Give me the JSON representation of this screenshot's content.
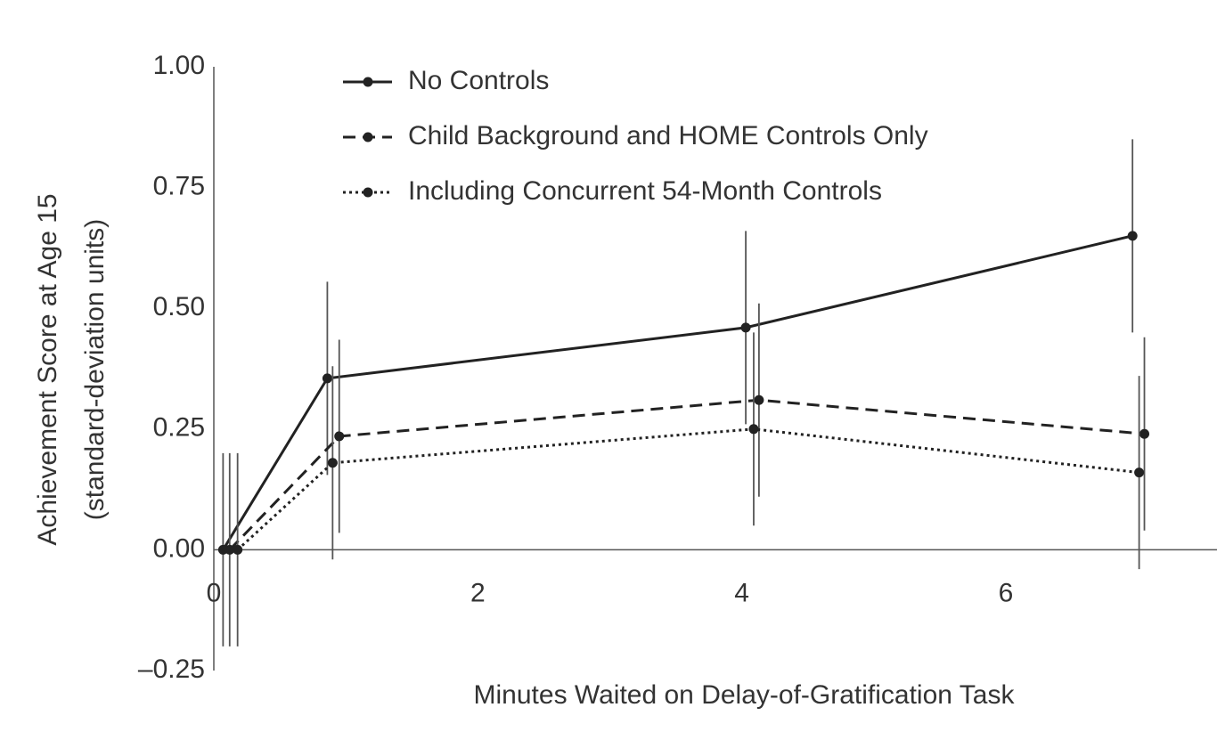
{
  "chart_data": {
    "type": "line",
    "x_label": "Minutes Waited on Delay-of-Gratification Task",
    "y_label": [
      "Achievement Score at Age 15",
      "(standard-deviation units)"
    ],
    "xlim": [
      0,
      7.6
    ],
    "xticks": [
      0,
      2,
      4,
      6
    ],
    "ylim": [
      -0.25,
      1.0
    ],
    "yticks": [
      {
        "value": -0.25,
        "label": "–0.25"
      },
      {
        "value": 0,
        "label": "0.00"
      },
      {
        "value": 0.25,
        "label": "0.25"
      },
      {
        "value": 0.5,
        "label": "0.50"
      },
      {
        "value": 0.75,
        "label": "0.75"
      },
      {
        "value": 1,
        "label": "1.00"
      }
    ],
    "legend": "top-left",
    "series": [
      {
        "name": "No Controls",
        "color": "#222222",
        "line_style": "solid",
        "x": [
          0.07,
          0.86,
          4.03,
          6.96
        ],
        "values": [
          0,
          0.355,
          0.46,
          0.65
        ],
        "errors": [
          0.2,
          0.2,
          0.2,
          0.2
        ]
      },
      {
        "name": "Child Background and HOME Controls Only",
        "color": "#222222",
        "line_style": "dashed",
        "x": [
          0.12,
          0.95,
          4.13,
          7.05
        ],
        "values": [
          0,
          0.235,
          0.31,
          0.24
        ],
        "errors": [
          0.2,
          0.2,
          0.2,
          0.2
        ]
      },
      {
        "name": "Including Concurrent 54-Month Controls",
        "color": "#222222",
        "line_style": "dotted",
        "x": [
          0.18,
          0.9,
          4.09,
          7.01
        ],
        "values": [
          0,
          0.18,
          0.25,
          0.16
        ],
        "errors": [
          0.2,
          0.2,
          0.2,
          0.2
        ]
      }
    ]
  }
}
